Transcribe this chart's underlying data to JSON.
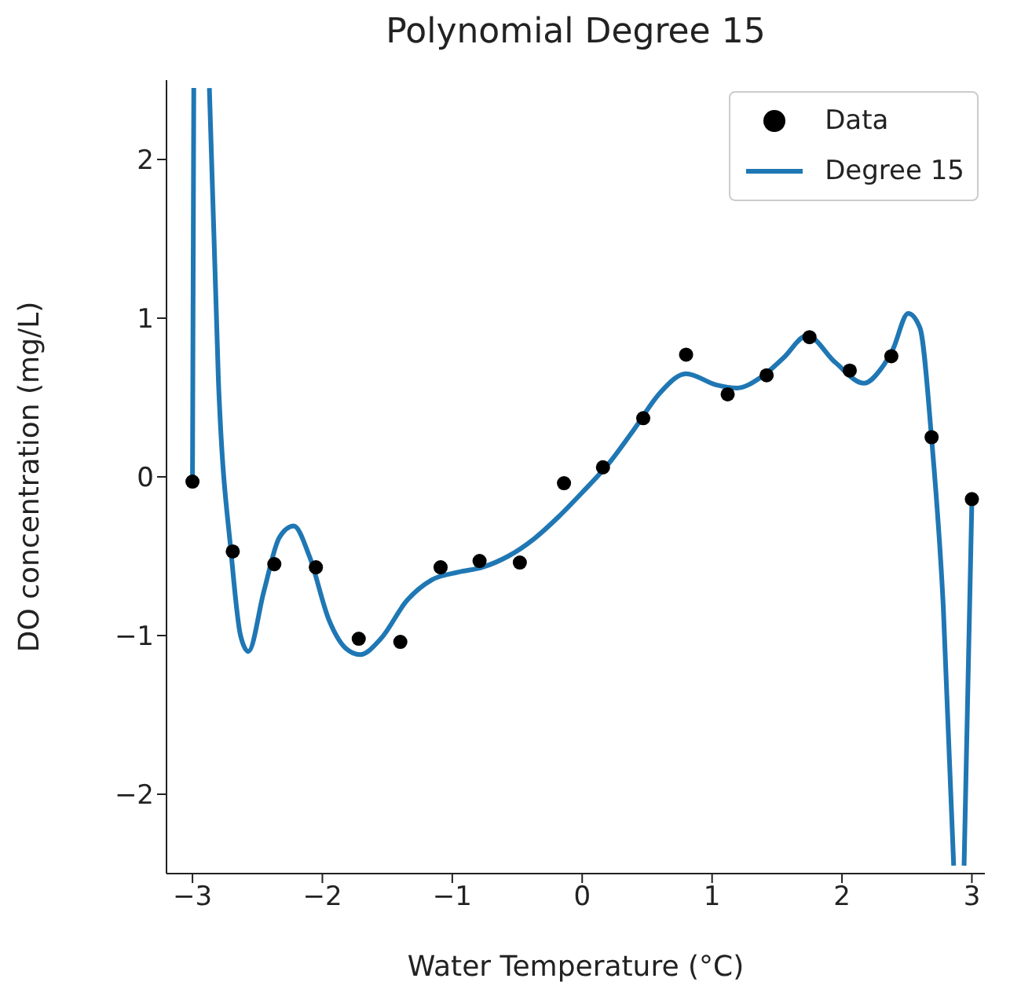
{
  "chart_data": {
    "type": "scatter",
    "title": "Polynomial Degree 15",
    "xlabel": "Water Temperature (°C)",
    "ylabel": "DO concentration (mg/L)",
    "xlim": [
      -3.2,
      3.1
    ],
    "ylim": [
      -2.5,
      2.5
    ],
    "xticks": [
      {
        "value": -3,
        "label": "−3"
      },
      {
        "value": -2,
        "label": "−2"
      },
      {
        "value": -1,
        "label": "−1"
      },
      0,
      1,
      2,
      3
    ],
    "yticks": [
      {
        "value": -2,
        "label": "−2"
      },
      {
        "value": -1,
        "label": "−1"
      },
      0,
      1,
      2
    ],
    "grid": false,
    "legend": "top right",
    "series": [
      {
        "name": "Data",
        "color": "#000000",
        "marker": "circle",
        "x": [
          -3,
          -2.69,
          -2.37,
          -2.05,
          -1.72,
          -1.4,
          -1.09,
          -0.79,
          -0.48,
          -0.14,
          0.16,
          0.47,
          0.8,
          1.12,
          1.42,
          1.75,
          2.06,
          2.38,
          2.69,
          3.0
        ],
        "values": [
          -0.03,
          -0.47,
          -0.55,
          -0.57,
          -1.02,
          -1.04,
          -0.57,
          -0.53,
          -0.54,
          -0.04,
          0.06,
          0.37,
          0.77,
          0.52,
          0.64,
          0.88,
          0.67,
          0.76,
          0.25,
          -0.14
        ]
      },
      {
        "name": "Degree 15",
        "type": "line",
        "color": "#1f77b4",
        "marker": "none",
        "line_style": "solid",
        "x": [
          -3,
          -2.99,
          -2.93,
          -2.87,
          -2.8,
          -2.7,
          -2.63,
          -2.57,
          -2.45,
          -2.33,
          -2.22,
          -2.1,
          -1.95,
          -1.82,
          -1.71,
          -1.55,
          -1.35,
          -1.16,
          -0.95,
          -0.77,
          -0.57,
          -0.37,
          -0.18,
          0.01,
          0.2,
          0.4,
          0.6,
          0.8,
          1.03,
          1.19,
          1.38,
          1.55,
          1.73,
          1.95,
          2.17,
          2.3,
          2.39,
          2.51,
          2.6,
          2.69,
          2.78,
          2.86,
          2.9,
          2.94,
          3.0
        ],
        "values": [
          -0.03,
          2.45,
          null,
          2.45,
          0.6,
          -0.5,
          -1.0,
          -1.1,
          -0.72,
          -0.38,
          -0.31,
          -0.5,
          -0.9,
          -1.08,
          -1.12,
          -1.02,
          -0.78,
          -0.65,
          -0.6,
          -0.57,
          -0.5,
          -0.39,
          -0.25,
          -0.09,
          0.08,
          0.3,
          0.53,
          0.65,
          0.58,
          0.56,
          0.63,
          0.75,
          0.89,
          0.72,
          0.59,
          0.68,
          0.8,
          1.03,
          0.94,
          0.24,
          -0.82,
          -2.45,
          null,
          -2.45,
          -0.15
        ]
      }
    ]
  }
}
